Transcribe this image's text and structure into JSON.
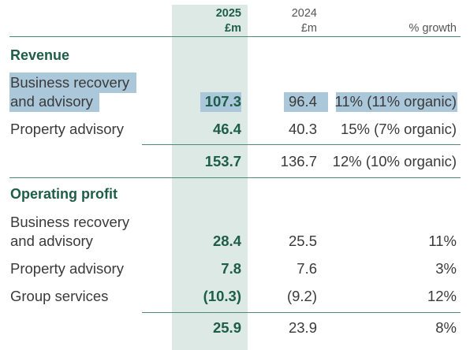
{
  "header": {
    "y2025": [
      "2025",
      "£m"
    ],
    "y2024": [
      "2024",
      "£m"
    ],
    "growth": "% growth"
  },
  "revenue": {
    "title": "Revenue",
    "rows": [
      {
        "label": [
          "Business recovery",
          "and advisory"
        ],
        "y2025": "107.3",
        "y2024": "96.4",
        "growth": "11% (11% organic)"
      },
      {
        "label": [
          "Property advisory"
        ],
        "y2025": "46.4",
        "y2024": "40.3",
        "growth": "15% (7% organic)"
      }
    ],
    "total": {
      "y2025": "153.7",
      "y2024": "136.7",
      "growth": "12% (10% organic)"
    }
  },
  "operating_profit": {
    "title": "Operating profit",
    "rows": [
      {
        "label": [
          "Business recovery",
          "and advisory"
        ],
        "y2025": "28.4",
        "y2024": "25.5",
        "growth": "11%"
      },
      {
        "label": [
          "Property advisory"
        ],
        "y2025": "7.8",
        "y2024": "7.6",
        "growth": "3%"
      },
      {
        "label": [
          "Group services"
        ],
        "y2025": "(10.3)",
        "y2024": "(9.2)",
        "growth": "12%"
      }
    ],
    "total": {
      "y2025": "25.9",
      "y2024": "23.9",
      "growth": "8%"
    }
  },
  "colors": {
    "accent": "#1e5d47",
    "band": "#dde9e4",
    "highlight": "#abc7da",
    "rule": "#4c8a72"
  }
}
